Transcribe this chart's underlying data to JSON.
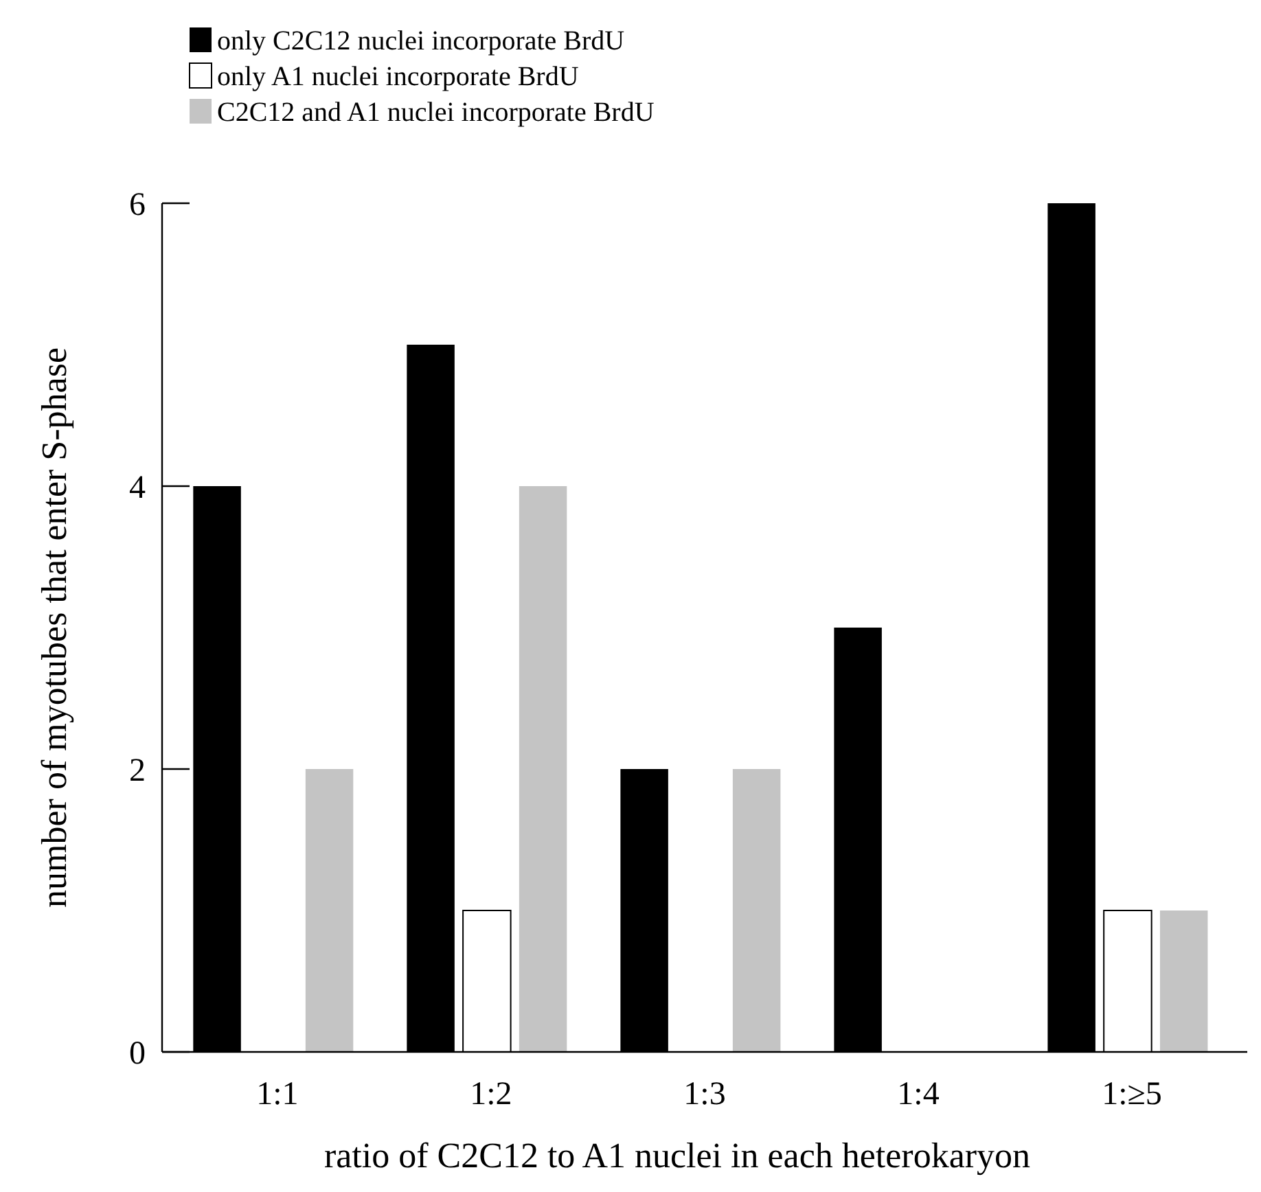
{
  "chart_data": {
    "type": "bar",
    "xlabel": "ratio of C2C12 to A1 nuclei in each heterokaryon",
    "ylabel": "number of myotubes that enter S-phase",
    "categories": [
      "1:1",
      "1:2",
      "1:3",
      "1:4",
      "1:≥5"
    ],
    "series": [
      {
        "name": "only C2C12 nuclei incorporate BrdU",
        "color": "#000000",
        "values": [
          4,
          5,
          2,
          3,
          6
        ]
      },
      {
        "name": "only A1 nuclei incorporate BrdU",
        "color": "#ffffff",
        "values": [
          0,
          1,
          0,
          0,
          1
        ]
      },
      {
        "name": "C2C12 and A1 nuclei incorporate BrdU",
        "color": "#c4c4c4",
        "values": [
          2,
          4,
          2,
          0,
          1
        ]
      }
    ],
    "ylim": [
      0,
      6
    ],
    "yticks": [
      0,
      2,
      4,
      6
    ],
    "grid": false,
    "legend": "top left"
  }
}
